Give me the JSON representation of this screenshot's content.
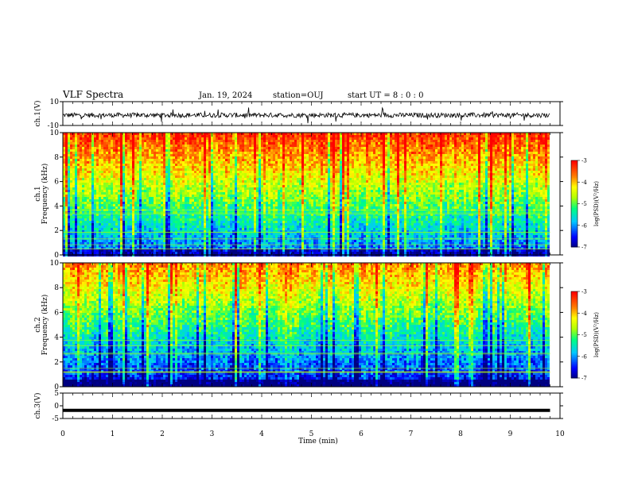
{
  "header": {
    "title": "VLF Spectra",
    "date": "Jan. 19, 2024",
    "station": "station=OUJ",
    "start": "start UT =  8 : 0 : 0"
  },
  "chart_data": [
    {
      "type": "line",
      "panel": "ch1-waveform",
      "ylabel": "ch.1(V)",
      "ylim": [
        -10,
        10
      ],
      "yticks": [
        "10",
        "-10"
      ],
      "xlim": [
        0,
        10
      ],
      "description_values": {
        "baseline": 0,
        "typical_amplitude": 2,
        "spike_amplitude": 7
      }
    },
    {
      "type": "heatmap",
      "panel": "ch1-spectrogram",
      "ylabel": "ch.1\nFrequency (kHz)",
      "ylim": [
        0,
        10
      ],
      "yticks": [
        "0",
        "2",
        "4",
        "6",
        "8",
        "10"
      ],
      "xlim": [
        0,
        9.8
      ],
      "colorbar": {
        "label": "log(PSD)(V²/Hz)",
        "range": [
          -7,
          -3
        ],
        "ticks": [
          "-3",
          "-4",
          "-5",
          "-6",
          "-7"
        ]
      }
    },
    {
      "type": "heatmap",
      "panel": "ch2-spectrogram",
      "ylabel": "ch.2\nFrequency (kHz)",
      "ylim": [
        0,
        10
      ],
      "yticks": [
        "0",
        "2",
        "4",
        "6",
        "8",
        "10"
      ],
      "xlim": [
        0,
        9.8
      ],
      "colorbar": {
        "label": "log(PSD)(V²/Hz)",
        "range": [
          -7,
          -3
        ],
        "ticks": [
          "-3",
          "-4",
          "-5",
          "-6",
          "-7"
        ]
      }
    },
    {
      "type": "line",
      "panel": "ch3-waveform",
      "ylabel": "ch.3(V)",
      "ylim": [
        -5,
        5
      ],
      "yticks": [
        "5",
        "0",
        "-5"
      ],
      "xlim": [
        0,
        9.8
      ],
      "values_constant": -1.8
    }
  ],
  "xaxis": {
    "label": "Time (min)",
    "ticks": [
      "0",
      "1",
      "2",
      "3",
      "4",
      "5",
      "6",
      "7",
      "8",
      "9",
      "10"
    ]
  },
  "colors": {
    "scale": [
      "#000080",
      "#0000ff",
      "#00c8ff",
      "#00ff80",
      "#c8ff00",
      "#ffff00",
      "#ff8000",
      "#ff0000",
      "#ffffff"
    ]
  }
}
